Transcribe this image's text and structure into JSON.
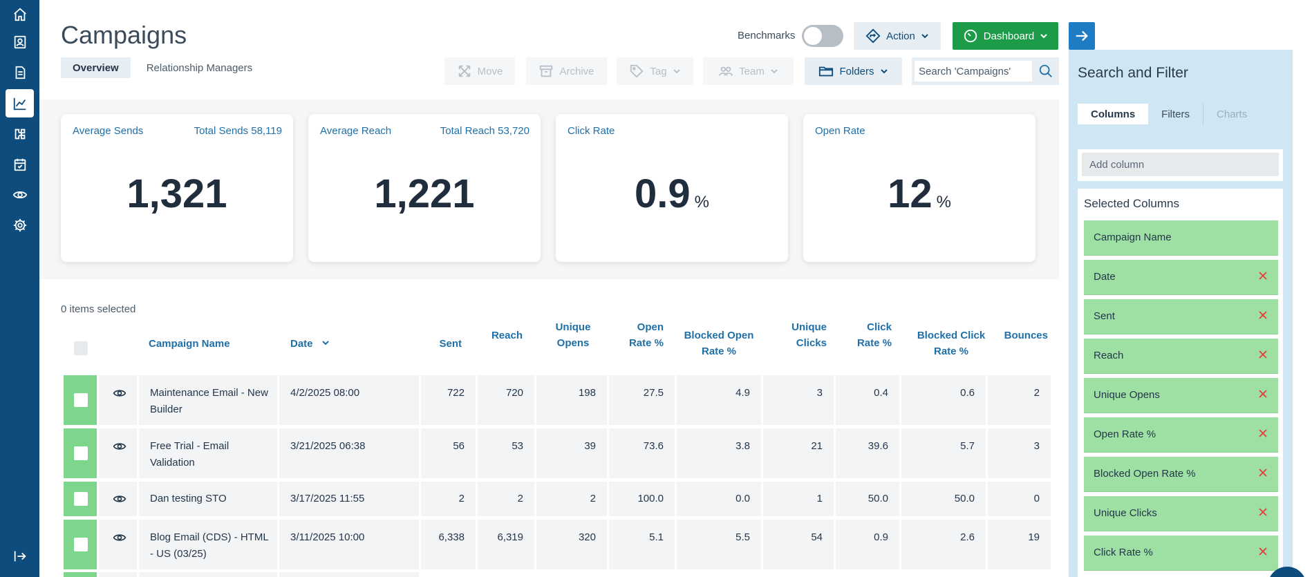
{
  "nav": {
    "items": [
      {
        "icon": "home-icon"
      },
      {
        "icon": "contacts-icon"
      },
      {
        "icon": "document-icon"
      },
      {
        "icon": "chart-icon",
        "active": true
      },
      {
        "icon": "puzzle-icon"
      },
      {
        "icon": "calendar-icon"
      },
      {
        "icon": "eye-icon"
      },
      {
        "icon": "gear-icon"
      }
    ],
    "bottom_icon": "collapse-arrow-icon"
  },
  "header": {
    "title": "Campaigns",
    "tabs": [
      {
        "label": "Overview",
        "active": true
      },
      {
        "label": "Relationship Managers",
        "active": false
      }
    ],
    "benchmarks_label": "Benchmarks",
    "benchmarks_on": false,
    "action_label": "Action",
    "dashboard_label": "Dashboard"
  },
  "toolbar": {
    "move_label": "Move",
    "archive_label": "Archive",
    "tag_label": "Tag",
    "team_label": "Team",
    "folders_label": "Folders",
    "search_placeholder": "Search 'Campaigns'"
  },
  "stats": {
    "sends": {
      "label": "Average Sends",
      "total_label": "Total Sends 58,119",
      "value": "1,321"
    },
    "reach": {
      "label": "Average Reach",
      "total_label": "Total Reach 53,720",
      "value": "1,221"
    },
    "click_rate": {
      "label": "Click Rate",
      "value": "0.9",
      "unit": "%"
    },
    "open_rate": {
      "label": "Open Rate",
      "value": "12",
      "unit": "%"
    }
  },
  "table": {
    "selected_text": "0 items selected",
    "headers": {
      "name": "Campaign Name",
      "date": "Date",
      "sent": "Sent",
      "reach": "Reach",
      "unique_opens_1": "Unique",
      "unique_opens_2": "Opens",
      "open_rate_1": "Open",
      "open_rate_2": "Rate %",
      "blocked_open_1": "Blocked Open",
      "blocked_open_2": "Rate %",
      "unique_clicks_1": "Unique",
      "unique_clicks_2": "Clicks",
      "click_rate_1": "Click",
      "click_rate_2": "Rate %",
      "blocked_click_1": "Blocked Click",
      "blocked_click_2": "Rate %",
      "bounces": "Bounces"
    },
    "rows": [
      {
        "name_1": "Maintenance Email - New",
        "name_2": "Builder",
        "date": "4/2/2025 08:00",
        "sent": "722",
        "reach": "720",
        "unique_opens": "198",
        "open_rate": "27.5",
        "blocked_open": "4.9",
        "unique_clicks": "3",
        "click_rate": "0.4",
        "blocked_click": "0.6",
        "bounces": "2"
      },
      {
        "name_1": "Free Trial - Email",
        "name_2": "Validation",
        "date": "3/21/2025 06:38",
        "sent": "56",
        "reach": "53",
        "unique_opens": "39",
        "open_rate": "73.6",
        "blocked_open": "3.8",
        "unique_clicks": "21",
        "click_rate": "39.6",
        "blocked_click": "5.7",
        "bounces": "3"
      },
      {
        "name_1": "Dan testing STO",
        "name_2": "",
        "date": "3/17/2025 11:55",
        "sent": "2",
        "reach": "2",
        "unique_opens": "2",
        "open_rate": "100.0",
        "blocked_open": "0.0",
        "unique_clicks": "1",
        "click_rate": "50.0",
        "blocked_click": "50.0",
        "bounces": "0"
      },
      {
        "name_1": "Blog Email (CDS) - HTML",
        "name_2": "- US (03/25)",
        "date": "3/11/2025 10:00",
        "sent": "6,338",
        "reach": "6,319",
        "unique_opens": "320",
        "open_rate": "5.1",
        "blocked_open": "5.5",
        "unique_clicks": "54",
        "click_rate": "0.9",
        "blocked_click": "2.6",
        "bounces": "19"
      }
    ]
  },
  "panel": {
    "title": "Search and Filter",
    "tabs": [
      {
        "label": "Columns",
        "active": true
      },
      {
        "label": "Filters",
        "active": false
      },
      {
        "label": "Charts",
        "disabled": true
      }
    ],
    "add_placeholder": "Add column",
    "selected_title": "Selected Columns",
    "columns": [
      {
        "name": "Campaign Name",
        "removable": false
      },
      {
        "name": "Date",
        "removable": true
      },
      {
        "name": "Sent",
        "removable": true
      },
      {
        "name": "Reach",
        "removable": true
      },
      {
        "name": "Unique Opens",
        "removable": true
      },
      {
        "name": "Open Rate %",
        "removable": true
      },
      {
        "name": "Blocked Open Rate %",
        "removable": true
      },
      {
        "name": "Unique Clicks",
        "removable": true
      },
      {
        "name": "Click Rate %",
        "removable": true
      }
    ]
  },
  "colors": {
    "nav": "#0d4c7c",
    "accent_green": "#1c9b49",
    "selected_green": "#7ed68d",
    "link_blue": "#1f6fa8",
    "panel_bg": "#cfe6f3",
    "remove_red": "#e53b3b"
  }
}
